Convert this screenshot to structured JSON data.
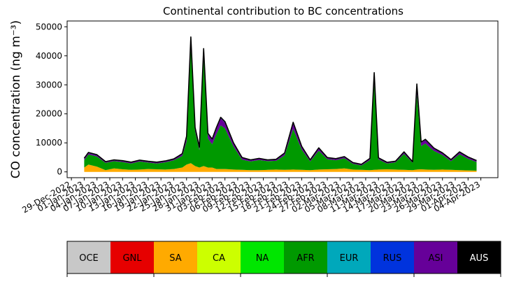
{
  "chart_data": {
    "type": "area",
    "title": "Continental contribution to BC concentrations",
    "ylabel": "CO concentration (ng m⁻³)",
    "xlabel": "",
    "ylim": [
      -2000,
      52000
    ],
    "xlim": [
      "2022-12-28",
      "2023-04-08"
    ],
    "grid": false,
    "x_tick_labels": [
      "29-Dec-2022",
      "01-Jan-2023",
      "04-Jan-2023",
      "07-Jan-2023",
      "10-Jan-2023",
      "13-Jan-2023",
      "16-Jan-2023",
      "19-Jan-2023",
      "22-Jan-2023",
      "25-Jan-2023",
      "28-Jan-2023",
      "31-Jan-2023",
      "03-Feb-2023",
      "06-Feb-2023",
      "09-Feb-2023",
      "12-Feb-2023",
      "15-Feb-2023",
      "18-Feb-2023",
      "21-Feb-2023",
      "24-Feb-2023",
      "27-Feb-2023",
      "02-Mar-2023",
      "05-Mar-2023",
      "08-Mar-2023",
      "11-Mar-2023",
      "14-Mar-2023",
      "17-Mar-2023",
      "20-Mar-2023",
      "23-Mar-2023",
      "26-Mar-2023",
      "29-Mar-2023",
      "01-Apr-2023",
      "04-Apr-2023"
    ],
    "x_tick_dates": [
      "2022-12-29",
      "2023-01-01",
      "2023-01-04",
      "2023-01-07",
      "2023-01-10",
      "2023-01-13",
      "2023-01-16",
      "2023-01-19",
      "2023-01-22",
      "2023-01-25",
      "2023-01-28",
      "2023-01-31",
      "2023-02-03",
      "2023-02-06",
      "2023-02-09",
      "2023-02-12",
      "2023-02-15",
      "2023-02-18",
      "2023-02-21",
      "2023-02-24",
      "2023-02-27",
      "2023-03-02",
      "2023-03-05",
      "2023-03-08",
      "2023-03-11",
      "2023-03-14",
      "2023-03-17",
      "2023-03-20",
      "2023-03-23",
      "2023-03-26",
      "2023-03-29",
      "2023-04-01",
      "2023-04-04"
    ],
    "y_ticks": [
      0,
      10000,
      20000,
      30000,
      40000,
      50000
    ],
    "y_tick_labels": [
      "0",
      "10000",
      "20000",
      "30000",
      "40000",
      "50000"
    ],
    "x": [
      "2023-01-01",
      "2023-01-02",
      "2023-01-04",
      "2023-01-06",
      "2023-01-08",
      "2023-01-10",
      "2023-01-12",
      "2023-01-14",
      "2023-01-16",
      "2023-01-18",
      "2023-01-20",
      "2023-01-22",
      "2023-01-24",
      "2023-01-25",
      "2023-01-26",
      "2023-01-27",
      "2023-01-28",
      "2023-01-29",
      "2023-01-30",
      "2023-01-31",
      "2023-02-01",
      "2023-02-02",
      "2023-02-03",
      "2023-02-05",
      "2023-02-07",
      "2023-02-09",
      "2023-02-11",
      "2023-02-13",
      "2023-02-15",
      "2023-02-17",
      "2023-02-19",
      "2023-02-21",
      "2023-02-23",
      "2023-02-25",
      "2023-02-27",
      "2023-03-01",
      "2023-03-03",
      "2023-03-05",
      "2023-03-07",
      "2023-03-09",
      "2023-03-10",
      "2023-03-11",
      "2023-03-13",
      "2023-03-15",
      "2023-03-17",
      "2023-03-19",
      "2023-03-20",
      "2023-03-21",
      "2023-03-22",
      "2023-03-24",
      "2023-03-26",
      "2023-03-28",
      "2023-03-30",
      "2023-04-01",
      "2023-04-03"
    ],
    "series": [
      {
        "name": "SA",
        "color": "#ffaa00",
        "values": [
          1500,
          2500,
          1800,
          600,
          1200,
          900,
          700,
          800,
          1000,
          900,
          800,
          1000,
          1500,
          2500,
          3000,
          2000,
          1500,
          2000,
          1500,
          1500,
          1000,
          1000,
          1000,
          800,
          700,
          600,
          600,
          700,
          800,
          700,
          800,
          700,
          600,
          800,
          900,
          1000,
          1200,
          800,
          700,
          600,
          700,
          800,
          900,
          800,
          700,
          600,
          800,
          900,
          800,
          700,
          800,
          700,
          600,
          500,
          400
        ]
      },
      {
        "name": "AFR",
        "color": "#009900",
        "values": [
          2500,
          3500,
          3500,
          2500,
          2500,
          2500,
          2200,
          2800,
          2200,
          2000,
          2500,
          3000,
          4000,
          8000,
          40000,
          12000,
          6000,
          38000,
          10000,
          8000,
          12000,
          15000,
          14000,
          8000,
          3500,
          3000,
          3500,
          3000,
          3000,
          5000,
          14000,
          7000,
          3000,
          6500,
          3500,
          3000,
          3500,
          2000,
          1500,
          3500,
          30000,
          3500,
          2000,
          2500,
          5500,
          2500,
          26000,
          8000,
          9000,
          6500,
          5000,
          3000,
          5500,
          4000,
          3000
        ]
      },
      {
        "name": "ASI",
        "color": "#660099",
        "values": [
          500,
          500,
          400,
          300,
          300,
          300,
          300,
          300,
          300,
          300,
          300,
          300,
          600,
          1500,
          3000,
          1000,
          800,
          2000,
          1500,
          1500,
          2000,
          2500,
          2000,
          1000,
          600,
          400,
          400,
          300,
          400,
          600,
          2000,
          900,
          400,
          800,
          400,
          400,
          400,
          300,
          300,
          400,
          3000,
          400,
          300,
          300,
          500,
          300,
          3000,
          1200,
          1200,
          800,
          600,
          400,
          600,
          500,
          400
        ]
      },
      {
        "name": "EUR",
        "color": "#00a8bb",
        "values": [
          200,
          200,
          200,
          150,
          150,
          150,
          150,
          150,
          150,
          150,
          150,
          150,
          200,
          300,
          500,
          300,
          200,
          500,
          300,
          300,
          300,
          300,
          300,
          200,
          150,
          150,
          150,
          150,
          150,
          200,
          300,
          200,
          150,
          200,
          150,
          150,
          150,
          100,
          100,
          150,
          500,
          150,
          100,
          100,
          200,
          100,
          500,
          200,
          200,
          200,
          150,
          150,
          200,
          150,
          100
        ]
      },
      {
        "name": "total",
        "color": "#000000",
        "values": [
          4700,
          6700,
          5900,
          3550,
          4150,
          3850,
          3350,
          4050,
          3650,
          3350,
          3750,
          4450,
          6300,
          12300,
          46500,
          15300,
          8500,
          42500,
          13300,
          11300,
          15300,
          18800,
          17300,
          10000,
          4950,
          4150,
          4650,
          4150,
          4350,
          6500,
          17100,
          8800,
          4150,
          8300,
          4950,
          4550,
          5250,
          3200,
          2600,
          4650,
          34200,
          4850,
          3300,
          3700,
          6900,
          3500,
          30300,
          10300,
          11200,
          8200,
          6550,
          4250,
          6900,
          5150,
          3900
        ]
      }
    ],
    "legend": {
      "placement": "bottom",
      "entries": [
        {
          "label": "OCE",
          "color": "#c8c8c8",
          "text_color": "#000000"
        },
        {
          "label": "GNL",
          "color": "#e60000",
          "text_color": "#000000"
        },
        {
          "label": "SA",
          "color": "#ffaa00",
          "text_color": "#000000"
        },
        {
          "label": "CA",
          "color": "#ccff00",
          "text_color": "#000000"
        },
        {
          "label": "NA",
          "color": "#00e600",
          "text_color": "#000000"
        },
        {
          "label": "AFR",
          "color": "#009900",
          "text_color": "#000000"
        },
        {
          "label": "EUR",
          "color": "#00a8bb",
          "text_color": "#000000"
        },
        {
          "label": "RUS",
          "color": "#0033dd",
          "text_color": "#000000"
        },
        {
          "label": "ASI",
          "color": "#660099",
          "text_color": "#000000"
        },
        {
          "label": "AUS",
          "color": "#000000",
          "text_color": "#ffffff"
        }
      ]
    }
  }
}
